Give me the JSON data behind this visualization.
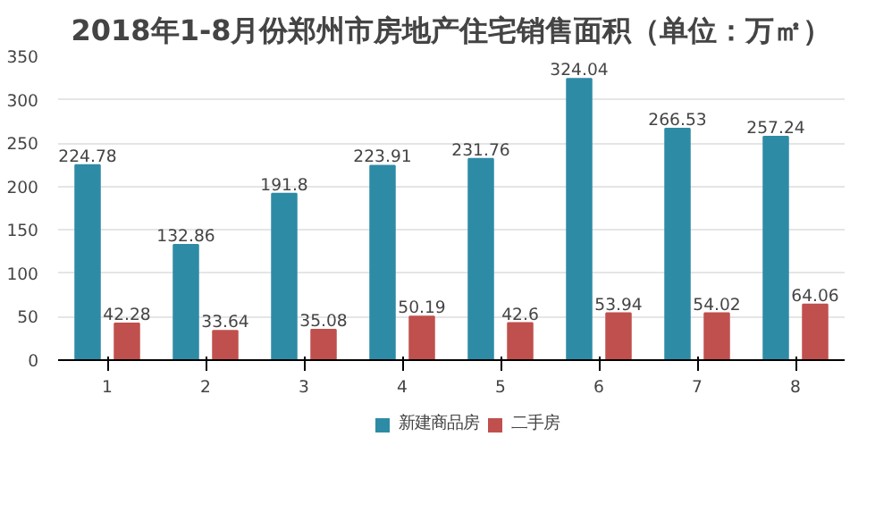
{
  "chart_data": {
    "type": "bar",
    "title": "2018年1-8月份郑州市房地产住宅销售面积（单位：万㎡）",
    "categories": [
      "1",
      "2",
      "3",
      "4",
      "5",
      "6",
      "7",
      "8"
    ],
    "series": [
      {
        "name": "新建商品房",
        "color": "#2e8ba6",
        "values": [
          224.78,
          132.86,
          191.8,
          223.91,
          231.76,
          324.04,
          266.53,
          257.24
        ]
      },
      {
        "name": "二手房",
        "color": "#c0504d",
        "values": [
          42.28,
          33.64,
          35.08,
          50.19,
          42.6,
          53.94,
          54.02,
          64.06
        ]
      }
    ],
    "ylim": [
      0,
      350
    ],
    "yticks": [
      0,
      50,
      100,
      150,
      200,
      250,
      300,
      350
    ],
    "grid": "y",
    "legend": "bottom",
    "data_labels": true
  }
}
